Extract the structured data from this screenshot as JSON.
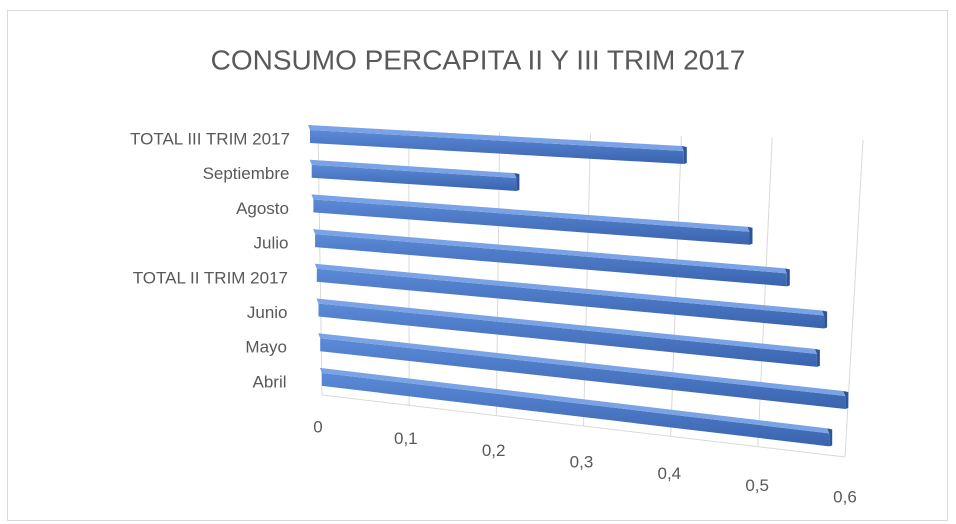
{
  "chart_data": {
    "type": "bar3d",
    "orientation": "horizontal",
    "title": "CONSUMO PERCAPITA II Y III TRIM 2017",
    "categories": [
      "TOTAL III TRIM 2017",
      "Septiembre",
      "Agosto",
      "Julio",
      "TOTAL II TRIM 2017",
      "Junio",
      "Mayo",
      "Abril"
    ],
    "values": [
      0.42,
      0.23,
      0.49,
      0.53,
      0.57,
      0.56,
      0.59,
      0.57
    ],
    "color": "#4472c4",
    "xlim": [
      0,
      0.6
    ],
    "xticks": [
      0,
      {
        "value": 0.1,
        "label": "0,1"
      },
      {
        "value": 0.2,
        "label": "0,2"
      },
      {
        "value": 0.3,
        "label": "0,3"
      },
      {
        "value": 0.4,
        "label": "0,4"
      },
      {
        "value": 0.5,
        "label": "0,5"
      },
      {
        "value": 0.6,
        "label": "0,6"
      }
    ],
    "grid": true
  }
}
